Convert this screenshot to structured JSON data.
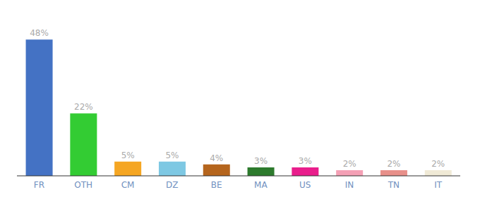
{
  "chart_data": {
    "type": "bar",
    "categories": [
      "FR",
      "OTH",
      "CM",
      "DZ",
      "BE",
      "MA",
      "US",
      "IN",
      "TN",
      "IT"
    ],
    "values": [
      48,
      22,
      5,
      5,
      4,
      3,
      3,
      2,
      2,
      2
    ],
    "value_labels": [
      "48%",
      "22%",
      "5%",
      "5%",
      "4%",
      "3%",
      "3%",
      "2%",
      "2%",
      "2%"
    ],
    "data_labels": true,
    "colors": [
      "#4472c4",
      "#33cc33",
      "#f5a623",
      "#7ec8e3",
      "#b5651d",
      "#2d7a2d",
      "#e91e8c",
      "#f4a0b5",
      "#e8908a",
      "#f0ead6"
    ],
    "ylim": [
      0,
      54
    ],
    "tick_labels": "x"
  }
}
